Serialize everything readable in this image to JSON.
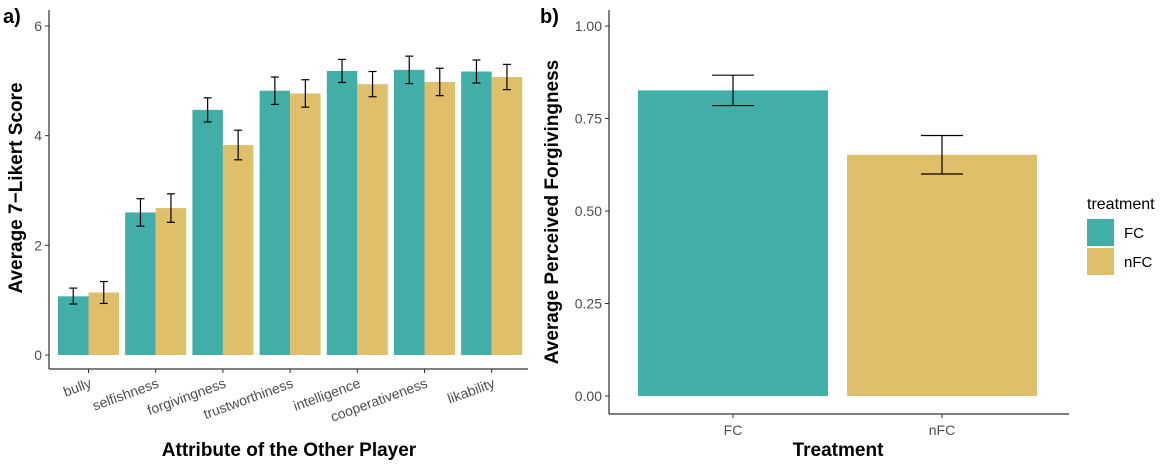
{
  "colors": {
    "FC": "#41afa7",
    "nFC": "#e0bf6a"
  },
  "legend": {
    "title": "treatment",
    "items": [
      {
        "key": "FC",
        "label": "FC"
      },
      {
        "key": "nFC",
        "label": "nFC"
      }
    ]
  },
  "chart_data": [
    {
      "panel_label": "a)",
      "type": "bar",
      "title": "",
      "xlabel": "Attribute of the Other Player",
      "ylabel": "Average 7−Likert Score",
      "ylim": [
        0,
        6
      ],
      "yticks": [
        0,
        2,
        4,
        6
      ],
      "ytick_labels": [
        "0",
        "2",
        "4",
        "6"
      ],
      "categories": [
        "bully",
        "selfishness",
        "forgivingness",
        "trustworthiness",
        "intelligence",
        "cooperativeness",
        "likability"
      ],
      "series": [
        {
          "name": "FC",
          "values": [
            1.07,
            2.6,
            4.47,
            4.82,
            5.18,
            5.2,
            5.17
          ],
          "err_low": [
            0.93,
            2.35,
            4.25,
            4.57,
            4.97,
            4.95,
            4.96
          ],
          "err_high": [
            1.22,
            2.85,
            4.69,
            5.07,
            5.39,
            5.45,
            5.38
          ]
        },
        {
          "name": "nFC",
          "values": [
            1.14,
            2.68,
            3.83,
            4.77,
            4.94,
            4.98,
            5.07
          ],
          "err_low": [
            0.94,
            2.42,
            3.56,
            4.52,
            4.71,
            4.73,
            4.84
          ],
          "err_high": [
            1.34,
            2.94,
            4.1,
            5.02,
            5.17,
            5.23,
            5.3
          ]
        }
      ],
      "legend": "none"
    },
    {
      "panel_label": "b)",
      "type": "bar",
      "title": "",
      "xlabel": "Treatment",
      "ylabel": "Average Perceived Forgivingness",
      "ylim": [
        0,
        1.0
      ],
      "yticks": [
        0,
        0.25,
        0.5,
        0.75,
        1.0
      ],
      "ytick_labels": [
        "0.00",
        "0.25",
        "0.50",
        "0.75",
        "1.00"
      ],
      "categories": [
        "FC",
        "nFC"
      ],
      "values": [
        0.826,
        0.652
      ],
      "err_low": [
        0.785,
        0.6
      ],
      "err_high": [
        0.867,
        0.704
      ],
      "legend": "right"
    }
  ]
}
